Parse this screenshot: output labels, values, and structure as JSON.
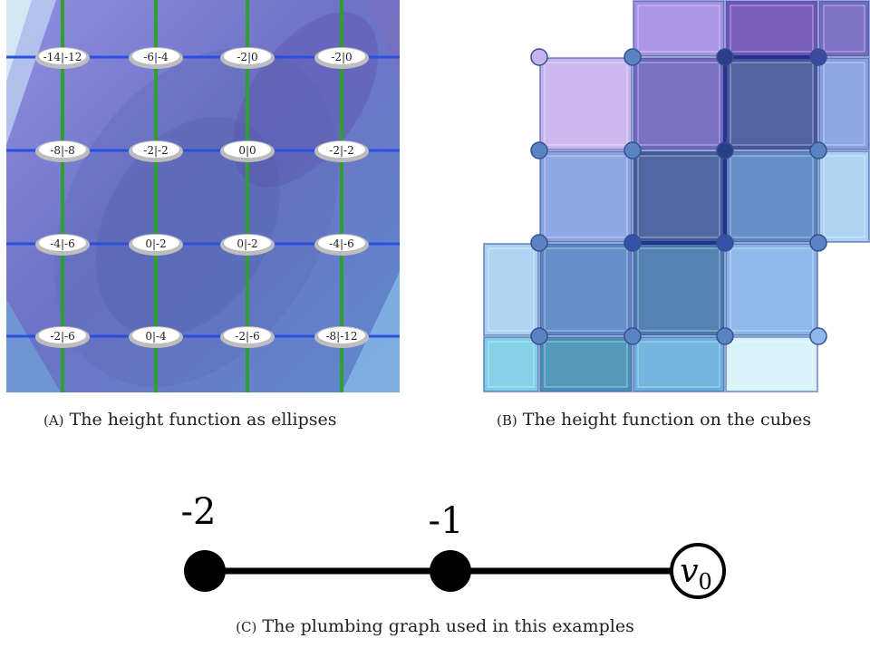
{
  "panel_a": {
    "rows": [
      [
        "-14|-12",
        "-6|-4",
        "-2|0",
        "-2|0"
      ],
      [
        "-8|-8",
        "-2|-2",
        "0|0",
        "-2|-2"
      ],
      [
        "-4|-6",
        "0|-2",
        "0|-2",
        "-4|-6"
      ],
      [
        "-2|-6",
        "0|-4",
        "-2|-6",
        "-8|-12"
      ]
    ],
    "colors": {
      "horizontal_line": "#2a4fe0",
      "vertical_line": "#2fa02a",
      "ellipse_fill": "#ffffff",
      "ellipse_rim": "#bdbdbd"
    }
  },
  "panel_b": {
    "grid": [
      [
        "",
        "",
        "#a58fe4",
        "#6f53b8",
        "#7468c2"
      ],
      [
        "",
        "#c7b4ef",
        "#7167c0",
        "#455599",
        "#86a0e0"
      ],
      [
        "",
        "#86a0e0",
        "#445a9a",
        "#5a85c4",
        "#a9d2f1"
      ],
      [
        "#a9d2f1",
        "#5a85c4",
        "#4679ad",
        "#86b3e6",
        ""
      ],
      [
        "#7ecfe8",
        "#4690b7",
        "#6ab0dc",
        "#d6f3f9",
        ""
      ]
    ],
    "colors": {
      "node": "#5a83c4",
      "dark_node": "#2a3f8a",
      "light_node": "#c7b4ef"
    }
  },
  "panel_c": {
    "nodes": [
      {
        "label": "-2",
        "filled": true
      },
      {
        "label": "-1",
        "filled": true
      },
      {
        "label": "",
        "filled": false
      }
    ],
    "vertex_name": "v",
    "vertex_sub": "0"
  },
  "captions": {
    "a": {
      "tag": "(A)",
      "text": "The height function as ellipses"
    },
    "b": {
      "tag": "(B)",
      "text": "The height function on the cubes"
    },
    "c": {
      "tag": "(C)",
      "text": "The plumbing graph used in this examples"
    }
  }
}
